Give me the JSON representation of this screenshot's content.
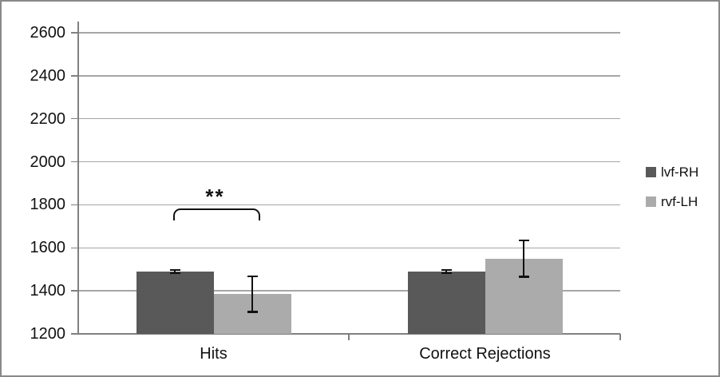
{
  "chart_data": {
    "type": "bar",
    "title": "",
    "categories": [
      "Hits",
      "Correct Rejections"
    ],
    "series": [
      {
        "name": "lvf-RH",
        "color": "#595959",
        "values": [
          1490,
          1490
        ],
        "errors": [
          8,
          8
        ]
      },
      {
        "name": "rvf-LH",
        "color": "#ababab",
        "values": [
          1385,
          1550
        ],
        "errors": [
          83,
          85
        ]
      }
    ],
    "xlabel": "",
    "ylabel": "",
    "ylim": [
      1200,
      2600
    ],
    "yticks": [
      1200,
      1400,
      1600,
      1800,
      2000,
      2200,
      2400,
      2600
    ],
    "grid": true,
    "legend_position": "right",
    "annotations": [
      {
        "text": "**",
        "category": "Hits",
        "between": [
          "lvf-RH",
          "rvf-LH"
        ],
        "type": "significance-bracket"
      }
    ]
  },
  "colors": {
    "bar_dark": "#595959",
    "bar_light": "#ababab",
    "gridline": "#a6a6a6",
    "axis": "#808080",
    "error_bar": "#111111",
    "text": "#111111",
    "frame_border": "#898989",
    "background": "#ffffff"
  }
}
